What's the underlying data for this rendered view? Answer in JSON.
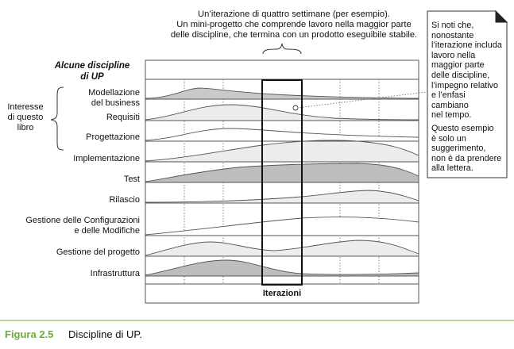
{
  "top_note": [
    "Un’iterazione di quattro settimane (per esempio).",
    "Un mini-progetto che comprende lavoro nella maggior parte",
    "delle discipline, che termina con un prodotto eseguibile stabile."
  ],
  "section_title": [
    "Alcune discipline",
    "di UP"
  ],
  "interest": [
    "Interesse",
    "di questo",
    "libro"
  ],
  "disciplines": [
    {
      "lines": [
        "Modellazione",
        "del business"
      ],
      "shade": "#c9c9c9"
    },
    {
      "lines": [
        "Requisiti"
      ],
      "shade": "#ececec"
    },
    {
      "lines": [
        "Progettazione"
      ],
      "shade": "#ffffff"
    },
    {
      "lines": [
        "Implementazione"
      ],
      "shade": "#ececec"
    },
    {
      "lines": [
        "Test"
      ],
      "shade": "#bdbdbd"
    },
    {
      "lines": [
        "Rilascio"
      ],
      "shade": "#ececec"
    },
    {
      "lines": [
        "Gestione delle Configurazioni",
        "e delle Modifiche"
      ],
      "shade": "#ffffff"
    },
    {
      "lines": [
        "Gestione del progetto"
      ],
      "shade": "#ececec"
    },
    {
      "lines": [
        "Infrastruttura"
      ],
      "shade": "#bdbdbd"
    }
  ],
  "x_label": "Iterazioni",
  "side_note": [
    [
      "Si noti che,",
      "nonostante",
      "l’iterazione includa",
      "lavoro nella",
      "maggior parte",
      "delle discipline,",
      "l’impegno relativo",
      "e l’enfasi cambiano",
      "nel tempo."
    ],
    [
      "Questo esempio",
      "è solo un",
      "suggerimento,",
      "non è da prendere",
      "alla lettera."
    ]
  ],
  "caption": {
    "number": "Figura 2.5",
    "text": "Discipline di UP."
  }
}
